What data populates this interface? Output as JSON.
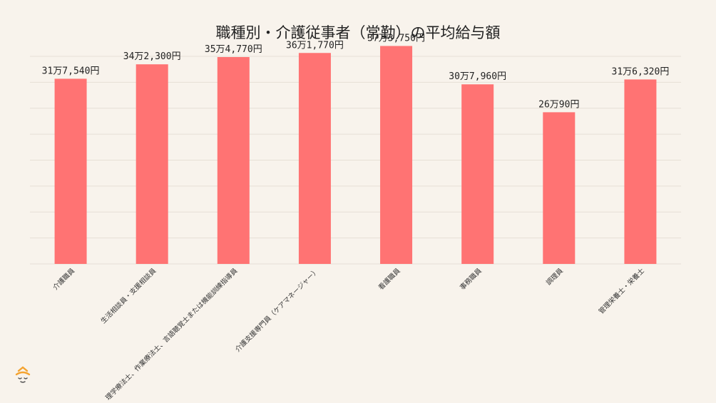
{
  "chart_data": {
    "type": "bar",
    "title": "職種別・介護従事者（常勤）の平均給与額",
    "categories": [
      "介護職員",
      "生活相談員・支援相談員",
      "理学療法士、作業療法士、言語聴覚士または機能訓練指導員",
      "介護支援専門員（ケアマネージャー）",
      "看護職員",
      "事務職員",
      "調理員",
      "管理栄養士・栄養士"
    ],
    "values": [
      317540,
      342300,
      354770,
      361770,
      373750,
      307960,
      260090,
      316320
    ],
    "value_labels": [
      "31万7,540円",
      "34万2,300円",
      "35万4,770円",
      "36万1,770円",
      "37万3,750円",
      "30万7,960円",
      "26万90円",
      "31万6,320円"
    ],
    "ylim": [
      0,
      400000
    ],
    "grid": true,
    "xlabel": "",
    "ylabel": "",
    "bar_color": "#ff7373"
  },
  "logo_icon": "face-logo-icon"
}
